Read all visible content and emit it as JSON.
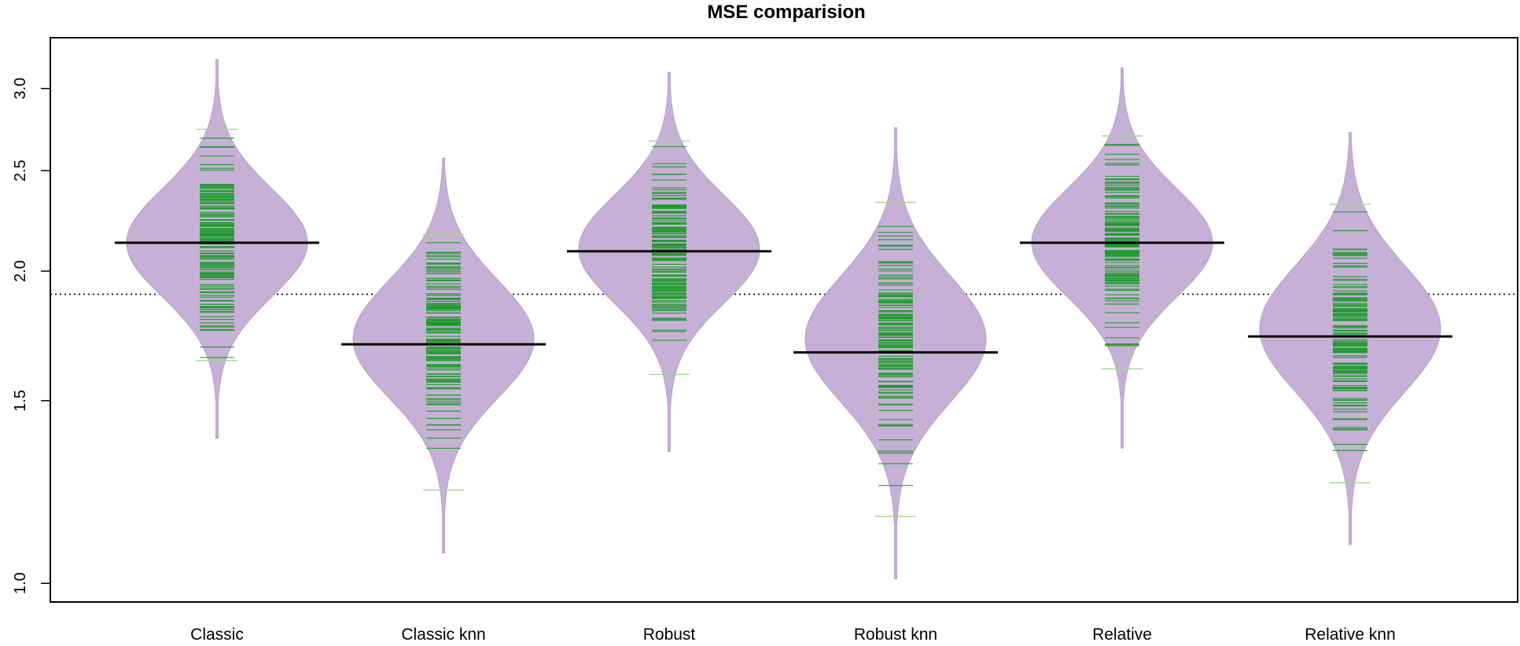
{
  "chart_data": {
    "type": "beanplot",
    "title": "MSE comparision",
    "xlabel": "",
    "ylabel": "",
    "y_scale": "log",
    "ylim": [
      0.99,
      3.3
    ],
    "y_ticks": [
      1.0,
      1.5,
      2.0,
      2.5,
      3.0
    ],
    "y_tick_labels": [
      "1.0",
      "1.5",
      "2.0",
      "2.5",
      "3.0"
    ],
    "overall_mean": 1.9,
    "categories": [
      "Classic",
      "Classic knn",
      "Robust",
      "Robust knn",
      "Relative",
      "Relative knn"
    ],
    "series": [
      {
        "category": "Classic",
        "mean": 2.13,
        "min": 1.38,
        "max": 3.2,
        "mode": 2.13,
        "spread": 0.12,
        "obs_min": 1.64,
        "obs_max": 2.74
      },
      {
        "category": "Classic knn",
        "mean": 1.7,
        "min": 1.07,
        "max": 2.57,
        "mode": 1.72,
        "spread": 0.13,
        "obs_min": 1.23,
        "obs_max": 2.17
      },
      {
        "category": "Robust",
        "mean": 2.09,
        "min": 1.34,
        "max": 3.11,
        "mode": 2.1,
        "spread": 0.12,
        "obs_min": 1.59,
        "obs_max": 2.67
      },
      {
        "category": "Robust knn",
        "mean": 1.67,
        "min": 1.01,
        "max": 2.75,
        "mode": 1.72,
        "spread": 0.14,
        "obs_min": 1.16,
        "obs_max": 2.33
      },
      {
        "category": "Relative",
        "mean": 2.13,
        "min": 1.35,
        "max": 3.14,
        "mode": 2.13,
        "spread": 0.12,
        "obs_min": 1.61,
        "obs_max": 2.7
      },
      {
        "category": "Relative knn",
        "mean": 1.73,
        "min": 1.09,
        "max": 2.72,
        "mode": 1.76,
        "spread": 0.14,
        "obs_min": 1.25,
        "obs_max": 2.32
      }
    ],
    "colors": {
      "violin_fill": "#c7b0d6",
      "violin_stroke": "#b89ccb",
      "points": "#1c9a2c",
      "point_edges": "#a8d490",
      "mean_line": "#000000",
      "overall_line": "#000000",
      "axis": "#000000"
    },
    "grid": false,
    "legend": "none"
  }
}
